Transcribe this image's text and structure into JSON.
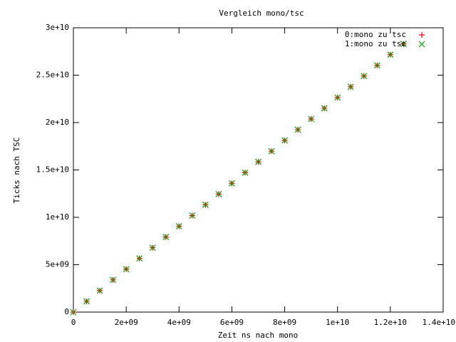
{
  "chart_data": {
    "type": "scatter",
    "title": "Vergleich mono/tsc",
    "x_label": "Zeit ns nach mono",
    "y_label": "Ticks nach TSC",
    "x": [
      0,
      500000000,
      1000000000,
      1500000000,
      2000000000,
      2500000000,
      3000000000,
      3500000000,
      4000000000,
      4500000000,
      5000000000,
      5500000000,
      6000000000,
      6500000000,
      7000000000,
      7500000000,
      8000000000,
      8500000000,
      9000000000,
      9500000000,
      10000000000,
      10500000000,
      11000000000,
      11500000000,
      12000000000,
      12500000000
    ],
    "series": [
      {
        "name": "0:mono zu tsc",
        "color": "#ff0000",
        "marker": "plus",
        "values": [
          0,
          1132000000,
          2264000000,
          3396000000,
          4528000000,
          5660000000,
          6792000000,
          7924000000,
          9056000000,
          10188000000,
          11320000000,
          12452000000,
          13584000000,
          14716000000,
          15848000000,
          16980000000,
          18112000000,
          19244000000,
          20376000000,
          21508000000,
          22640000000,
          23772000000,
          24904000000,
          26036000000,
          27168000000,
          28300000000
        ]
      },
      {
        "name": "1:mono zu tsc",
        "color": "#00a000",
        "marker": "cross",
        "values": [
          0,
          1132000000,
          2264000000,
          3396000000,
          4528000000,
          5660000000,
          6792000000,
          7924000000,
          9056000000,
          10188000000,
          11320000000,
          12452000000,
          13584000000,
          14716000000,
          15848000000,
          16980000000,
          18112000000,
          19244000000,
          20376000000,
          21508000000,
          22640000000,
          23772000000,
          24904000000,
          26036000000,
          27168000000,
          28300000000
        ]
      }
    ],
    "xlim": [
      0,
      14000000000
    ],
    "xticks": [
      0,
      {
        "value": 2000000000,
        "label": "2e+09"
      },
      {
        "value": 4000000000,
        "label": "4e+09"
      },
      {
        "value": 6000000000,
        "label": "6e+09"
      },
      {
        "value": 8000000000,
        "label": "8e+09"
      },
      {
        "value": 10000000000,
        "label": "1e+10"
      },
      {
        "value": 12000000000,
        "label": "1.2e+10"
      },
      {
        "value": 14000000000,
        "label": "1.4e+10"
      }
    ],
    "ylim": [
      0,
      30000000000
    ],
    "yticks": [
      0,
      {
        "value": 5000000000,
        "label": "5e+09"
      },
      {
        "value": 10000000000,
        "label": "1e+10"
      },
      {
        "value": 15000000000,
        "label": "1.5e+10"
      },
      {
        "value": 20000000000,
        "label": "2e+10"
      },
      {
        "value": 25000000000,
        "label": "2.5e+10"
      },
      {
        "value": 30000000000,
        "label": "3e+10"
      }
    ],
    "grid": false,
    "legend": "top-right"
  }
}
